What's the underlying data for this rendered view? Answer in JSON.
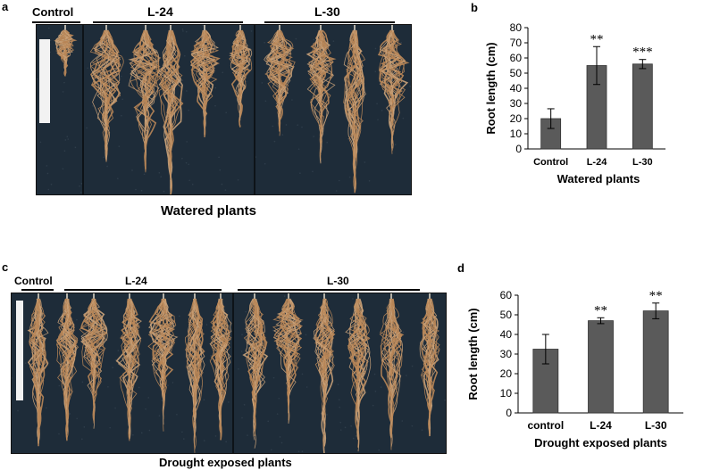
{
  "panels": {
    "a": {
      "letter": "a",
      "groups": [
        "Control",
        "L-24",
        "L-30"
      ],
      "caption": "Watered plants"
    },
    "c": {
      "letter": "c",
      "groups": [
        "Control",
        "L-24",
        "L-30"
      ],
      "caption": "Drought exposed plants"
    },
    "b": {
      "letter": "b"
    },
    "d": {
      "letter": "d"
    }
  },
  "chart_data": [
    {
      "id": "b",
      "type": "bar",
      "categories": [
        "Control",
        "L-24",
        "L-30"
      ],
      "values": [
        20,
        55,
        56
      ],
      "errors": [
        6.5,
        12.5,
        3
      ],
      "annotations": [
        "",
        "**",
        "***"
      ],
      "xlabel": "Watered plants",
      "ylabel": "Root length (cm)",
      "ylim": [
        0,
        80
      ],
      "yticks": [
        0,
        10,
        20,
        30,
        40,
        50,
        60,
        70,
        80
      ],
      "bar_color": "#5a5a5a",
      "grid": false
    },
    {
      "id": "d",
      "type": "bar",
      "categories": [
        "control",
        "L-24",
        "L-30"
      ],
      "values": [
        32.5,
        47,
        52
      ],
      "errors": [
        7.5,
        1.5,
        4
      ],
      "annotations": [
        "",
        "**",
        "**"
      ],
      "xlabel": "Drought exposed  plants",
      "ylabel": "Root length (cm)",
      "ylim": [
        0,
        60
      ],
      "yticks": [
        0,
        10,
        20,
        30,
        40,
        50,
        60
      ],
      "bar_color": "#5a5a5a",
      "grid": false
    }
  ]
}
